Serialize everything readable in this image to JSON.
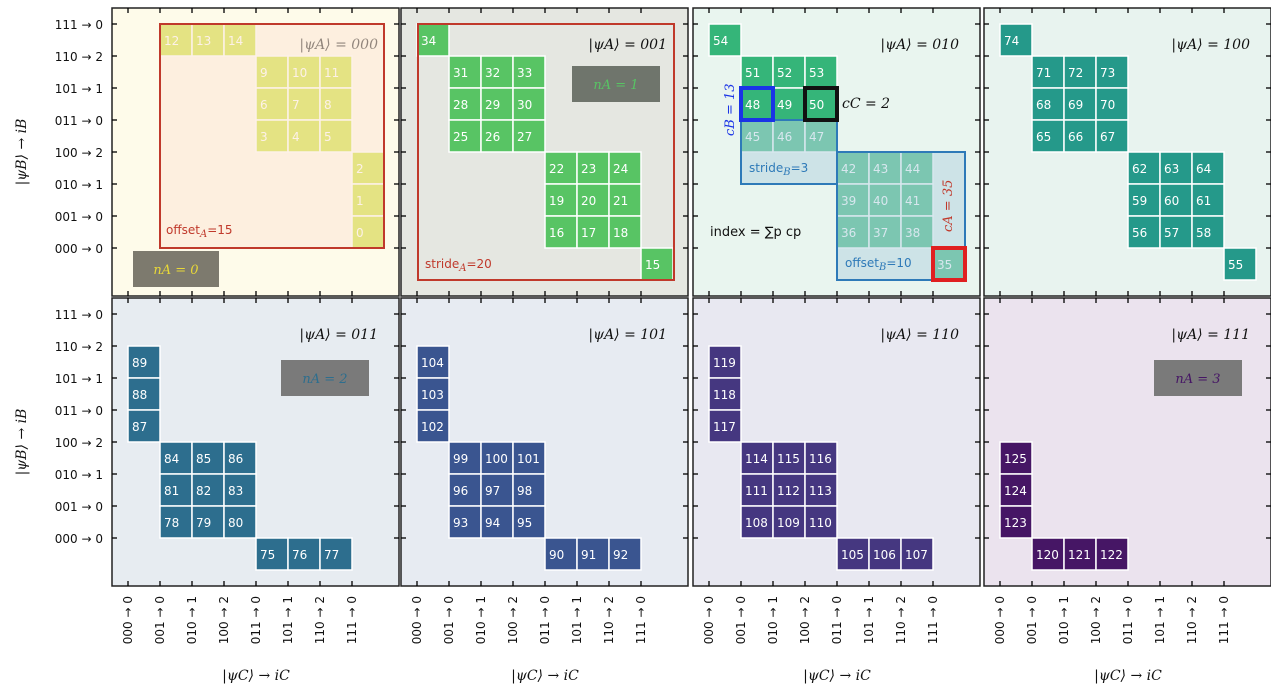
{
  "axes": {
    "y_label": "|ψB⟩ → iB",
    "x_label": "|ψC⟩ → iC",
    "row_labels": [
      "111 → 0",
      "110 → 2",
      "101 → 1",
      "011 → 0",
      "100 → 2",
      "010 → 1",
      "001 → 0",
      "000 → 0"
    ],
    "col_labels": [
      "000 → 0",
      "001 → 0",
      "010 → 1",
      "100 → 2",
      "011 → 0",
      "101 → 1",
      "110 → 2",
      "111 → 0"
    ]
  },
  "panels": [
    {
      "title": "|ψA⟩ = 000",
      "bg": "#fefbea",
      "color": "#c8e020",
      "cells": [
        [
          12,
          0,
          1
        ],
        [
          13,
          0,
          2
        ],
        [
          14,
          0,
          3
        ],
        [
          9,
          1,
          4
        ],
        [
          10,
          1,
          5
        ],
        [
          11,
          1,
          6
        ],
        [
          6,
          2,
          4
        ],
        [
          7,
          2,
          5
        ],
        [
          8,
          2,
          6
        ],
        [
          3,
          3,
          4
        ],
        [
          4,
          3,
          5
        ],
        [
          5,
          3,
          6
        ],
        [
          2,
          4,
          7
        ],
        [
          1,
          5,
          7
        ],
        [
          0,
          6,
          7
        ]
      ]
    },
    {
      "title": "|ψA⟩ = 001",
      "bg": "#e5e7e1",
      "color": "#58c464",
      "cells": [
        [
          34,
          0,
          0
        ],
        [
          31,
          1,
          1
        ],
        [
          32,
          1,
          2
        ],
        [
          33,
          1,
          3
        ],
        [
          28,
          2,
          1
        ],
        [
          29,
          2,
          2
        ],
        [
          30,
          2,
          3
        ],
        [
          25,
          3,
          1
        ],
        [
          26,
          3,
          2
        ],
        [
          27,
          3,
          3
        ],
        [
          22,
          4,
          4
        ],
        [
          23,
          4,
          5
        ],
        [
          24,
          4,
          6
        ],
        [
          19,
          5,
          4
        ],
        [
          20,
          5,
          5
        ],
        [
          21,
          5,
          6
        ],
        [
          16,
          6,
          4
        ],
        [
          17,
          6,
          5
        ],
        [
          18,
          6,
          6
        ],
        [
          15,
          7,
          7
        ]
      ]
    },
    {
      "title": "|ψA⟩ = 010",
      "bg": "#e9f5ef",
      "color": "#35b579",
      "cells": [
        [
          54,
          0,
          0
        ],
        [
          51,
          1,
          1
        ],
        [
          52,
          1,
          2
        ],
        [
          53,
          1,
          3
        ],
        [
          48,
          2,
          1
        ],
        [
          49,
          2,
          2
        ],
        [
          50,
          2,
          3
        ],
        [
          45,
          3,
          1
        ],
        [
          46,
          3,
          2
        ],
        [
          47,
          3,
          3
        ],
        [
          42,
          4,
          4
        ],
        [
          43,
          4,
          5
        ],
        [
          44,
          4,
          6
        ],
        [
          39,
          5,
          4
        ],
        [
          40,
          5,
          5
        ],
        [
          41,
          5,
          6
        ],
        [
          36,
          6,
          4
        ],
        [
          37,
          6,
          5
        ],
        [
          38,
          6,
          6
        ],
        [
          35,
          7,
          7
        ]
      ]
    },
    {
      "title": "|ψA⟩ = 100",
      "bg": "#e8f3ef",
      "color": "#25998a",
      "cells": [
        [
          74,
          0,
          0
        ],
        [
          71,
          1,
          1
        ],
        [
          72,
          1,
          2
        ],
        [
          73,
          1,
          3
        ],
        [
          68,
          2,
          1
        ],
        [
          69,
          2,
          2
        ],
        [
          70,
          2,
          3
        ],
        [
          65,
          3,
          1
        ],
        [
          66,
          3,
          2
        ],
        [
          67,
          3,
          3
        ],
        [
          62,
          4,
          4
        ],
        [
          63,
          4,
          5
        ],
        [
          64,
          4,
          6
        ],
        [
          59,
          5,
          4
        ],
        [
          60,
          5,
          5
        ],
        [
          61,
          5,
          6
        ],
        [
          56,
          6,
          4
        ],
        [
          57,
          6,
          5
        ],
        [
          58,
          6,
          6
        ],
        [
          55,
          7,
          7
        ]
      ]
    },
    {
      "title": "|ψA⟩ = 011",
      "bg": "#e7ecf1",
      "color": "#2d6e8e",
      "cells": [
        [
          89,
          1,
          0
        ],
        [
          88,
          2,
          0
        ],
        [
          87,
          3,
          0
        ],
        [
          84,
          4,
          1
        ],
        [
          85,
          4,
          2
        ],
        [
          86,
          4,
          3
        ],
        [
          81,
          5,
          1
        ],
        [
          82,
          5,
          2
        ],
        [
          83,
          5,
          3
        ],
        [
          78,
          6,
          1
        ],
        [
          79,
          6,
          2
        ],
        [
          80,
          6,
          3
        ],
        [
          75,
          7,
          4
        ],
        [
          76,
          7,
          5
        ],
        [
          77,
          7,
          6
        ]
      ]
    },
    {
      "title": "|ψA⟩ = 101",
      "bg": "#e7ebf2",
      "color": "#3a5590",
      "cells": [
        [
          104,
          1,
          0
        ],
        [
          103,
          2,
          0
        ],
        [
          102,
          3,
          0
        ],
        [
          99,
          4,
          1
        ],
        [
          100,
          4,
          2
        ],
        [
          101,
          4,
          3
        ],
        [
          96,
          5,
          1
        ],
        [
          97,
          5,
          2
        ],
        [
          98,
          5,
          3
        ],
        [
          93,
          6,
          1
        ],
        [
          94,
          6,
          2
        ],
        [
          95,
          6,
          3
        ],
        [
          90,
          7,
          4
        ],
        [
          91,
          7,
          5
        ],
        [
          92,
          7,
          6
        ]
      ]
    },
    {
      "title": "|ψA⟩ = 110",
      "bg": "#e8e8f1",
      "color": "#453780",
      "cells": [
        [
          119,
          1,
          0
        ],
        [
          118,
          2,
          0
        ],
        [
          117,
          3,
          0
        ],
        [
          114,
          4,
          1
        ],
        [
          115,
          4,
          2
        ],
        [
          116,
          4,
          3
        ],
        [
          111,
          5,
          1
        ],
        [
          112,
          5,
          2
        ],
        [
          113,
          5,
          3
        ],
        [
          108,
          6,
          1
        ],
        [
          109,
          6,
          2
        ],
        [
          110,
          6,
          3
        ],
        [
          105,
          7,
          4
        ],
        [
          106,
          7,
          5
        ],
        [
          107,
          7,
          6
        ]
      ]
    },
    {
      "title": "|ψA⟩ = 111",
      "bg": "#ebe3ee",
      "color": "#461665",
      "cells": [
        [
          125,
          4,
          0
        ],
        [
          124,
          5,
          0
        ],
        [
          123,
          6,
          0
        ],
        [
          120,
          7,
          1
        ],
        [
          121,
          7,
          2
        ],
        [
          122,
          7,
          3
        ]
      ]
    }
  ],
  "annotations": {
    "offset_A": "offset",
    "offset_A_sub": "A",
    "offset_A_val": "=15",
    "stride_A": "stride",
    "stride_A_sub": "A",
    "stride_A_val": "=20",
    "nA0": "nA = 0",
    "nA1": "nA = 1",
    "nA2": "nA = 2",
    "nA3": "nA = 3",
    "cC": "cC = 2",
    "cB": "cB = 13",
    "cA": "cA = 35",
    "strideB": "stride",
    "strideB_sub": "B",
    "strideB_val": "=3",
    "offsetB": "offset",
    "offsetB_sub": "B",
    "offsetB_val": "=10",
    "index_formula": "index = ∑p cp"
  },
  "colors": {
    "red": "#c0392b",
    "blue_box": "#1a33e6",
    "steel": "#2e7ab8",
    "grey_box": "#6f6f6f",
    "highlight_red": "#e02020",
    "highlight_black": "#111111"
  }
}
